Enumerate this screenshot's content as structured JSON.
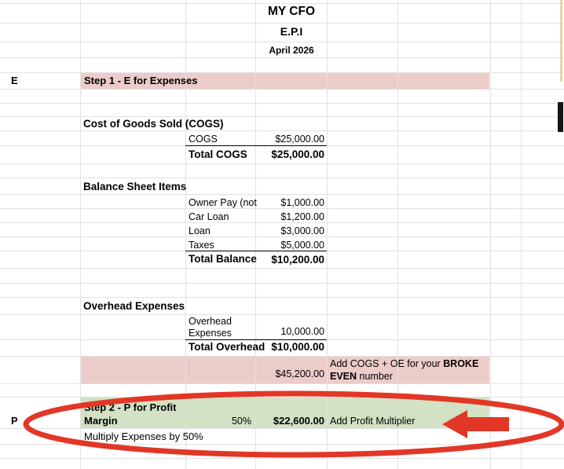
{
  "header": {
    "title": "MY CFO",
    "subtitle": "E.P.I",
    "date": "April 2026"
  },
  "row_markers": {
    "step1": "E",
    "step2": "P"
  },
  "step1": {
    "label": "Step 1 - E for Expenses"
  },
  "cogs": {
    "heading": "Cost of Goods Sold (COGS)",
    "items": [
      {
        "label": "COGS",
        "value": "$25,000.00"
      }
    ],
    "total_label": "Total COGS",
    "total_value": "$25,000.00"
  },
  "balance": {
    "heading": "Balance Sheet Items",
    "items": [
      {
        "label": "Owner Pay (not",
        "value": "$1,000.00"
      },
      {
        "label": "Car Loan",
        "value": "$1,200.00"
      },
      {
        "label": "Loan",
        "value": "$3,000.00"
      },
      {
        "label": "Taxes",
        "value": "$5,000.00"
      }
    ],
    "total_label": "Total Balance",
    "total_value": "$10,200.00"
  },
  "overhead": {
    "heading": "Overhead Expenses",
    "items": [
      {
        "label": "Overhead Expenses",
        "value": "10,000.00"
      }
    ],
    "total_label": "Total Overhead",
    "total_value": "$10,000.00"
  },
  "broke_even": {
    "total": "$45,200.00",
    "note_prefix": "Add COGS + OE for your ",
    "note_bold": "BROKE EVEN",
    "note_suffix": " number"
  },
  "step2": {
    "label": "Step 2 - P for Profit Margin",
    "multiplier": "50%",
    "value": "$22,600.00",
    "note": "Add Profit Multiplier",
    "instruction": "Multiply Expenses by 50%"
  },
  "colors": {
    "band_pink": "#ecccc9",
    "band_green": "#d3e1c5",
    "annotation_red": "#e23726",
    "grid_line": "#e2e2e2"
  }
}
